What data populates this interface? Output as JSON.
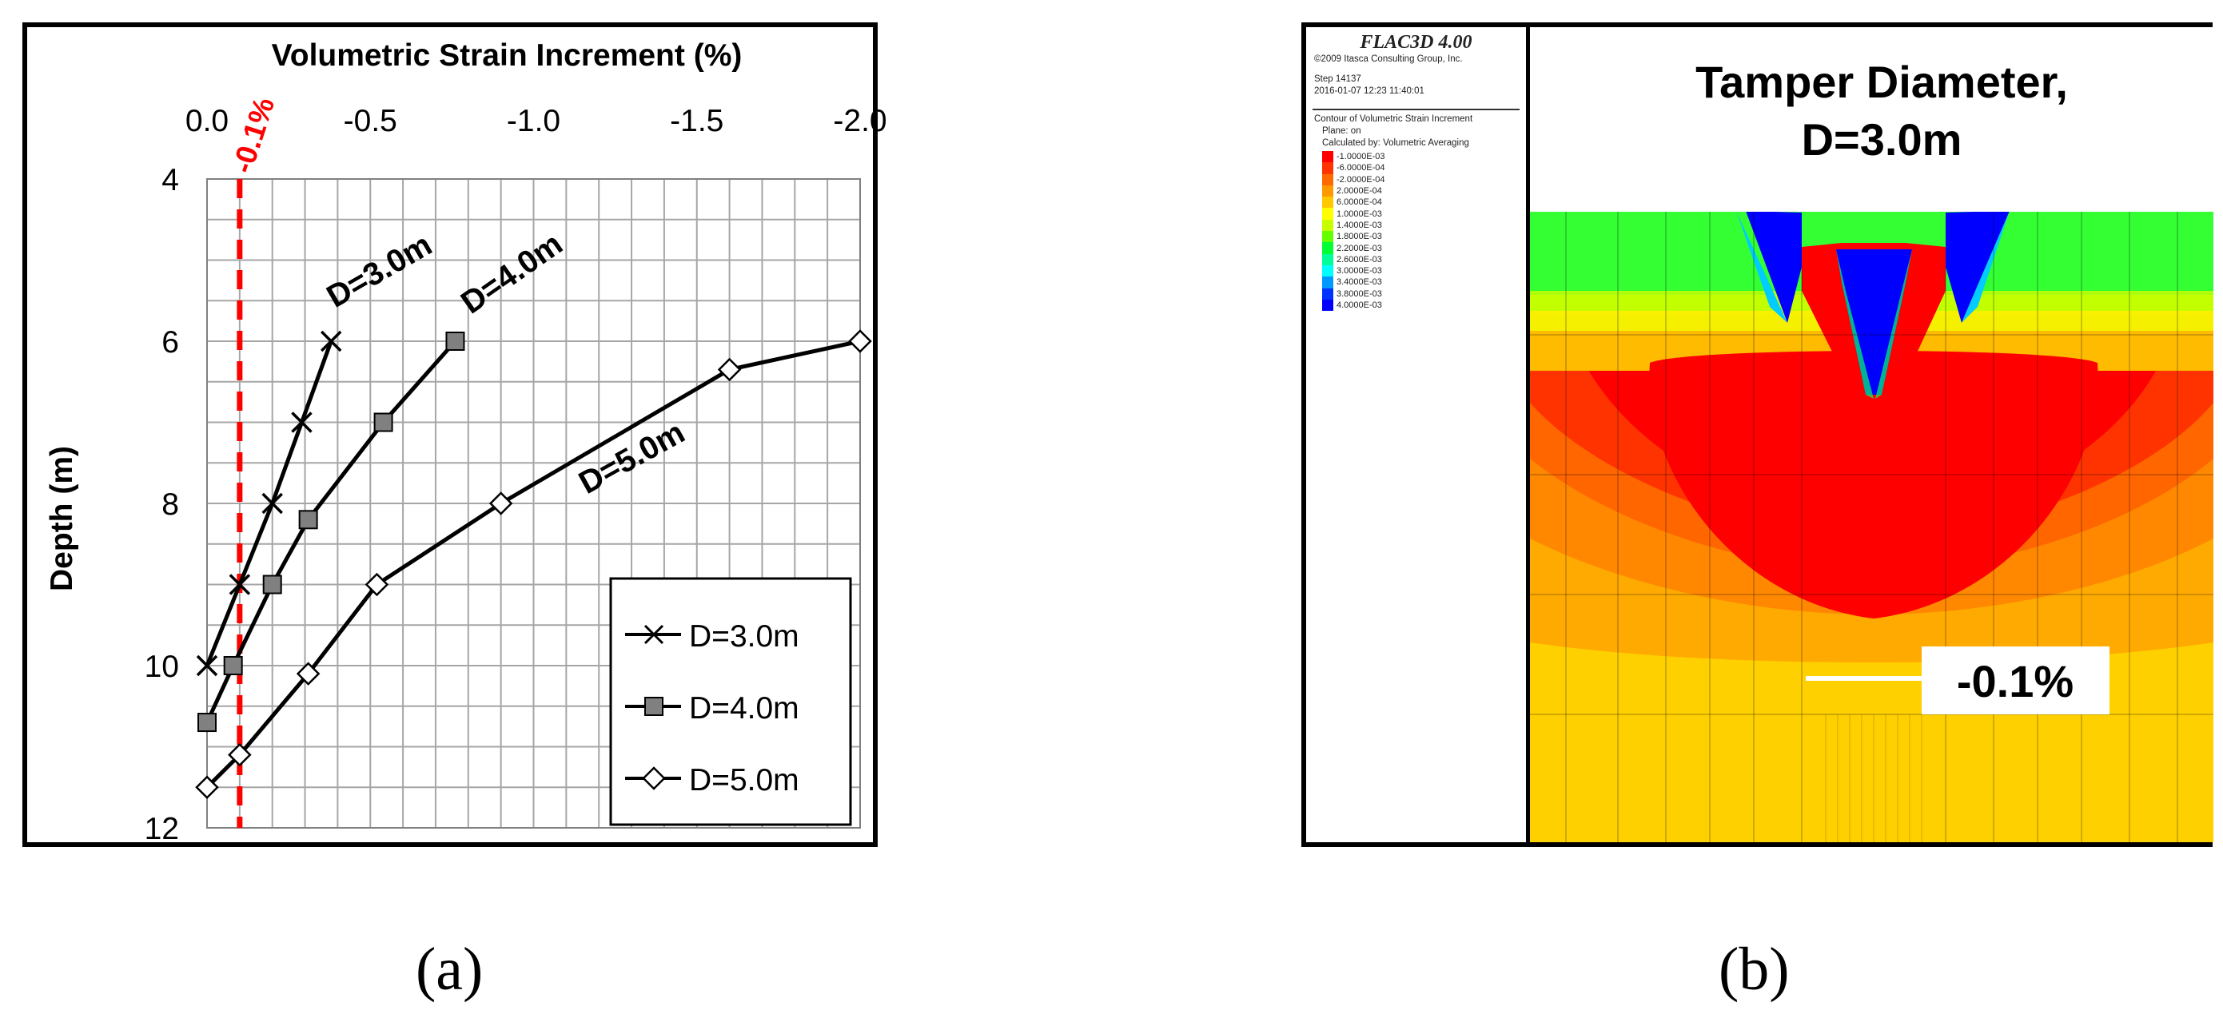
{
  "captions": {
    "a": "(a)",
    "b": "(b)"
  },
  "chart_data": {
    "type": "line",
    "xlabel": "Volumetric Strain Increment (%)",
    "ylabel": "Depth (m)",
    "xlim": [
      0.0,
      -2.0
    ],
    "ylim": [
      4,
      12
    ],
    "x_ticks": [
      "0.0",
      "-0.5",
      "-1.0",
      "-1.5",
      "-2.0"
    ],
    "y_ticks": [
      "4",
      "6",
      "8",
      "10",
      "12"
    ],
    "grid": true,
    "legend_position": "bottom-right",
    "threshold": {
      "value": -0.1,
      "label": "-0.1%",
      "color": "#ff0000"
    },
    "series": [
      {
        "name": "D=3.0m",
        "marker": "x",
        "label": "D=3.0m",
        "points": [
          [
            -0.38,
            6.0
          ],
          [
            -0.29,
            7.0
          ],
          [
            -0.2,
            8.0
          ],
          [
            -0.1,
            9.0
          ],
          [
            0.0,
            10.0
          ]
        ]
      },
      {
        "name": "D=4.0m",
        "marker": "square",
        "label": "D=4.0m",
        "points": [
          [
            -0.76,
            6.0
          ],
          [
            -0.54,
            7.0
          ],
          [
            -0.31,
            8.2
          ],
          [
            -0.2,
            9.0
          ],
          [
            -0.08,
            10.0
          ],
          [
            0.0,
            10.7
          ]
        ]
      },
      {
        "name": "D=5.0m",
        "marker": "diamond",
        "label": "D=5.0m",
        "points": [
          [
            -2.0,
            6.0
          ],
          [
            -1.6,
            6.35
          ],
          [
            -0.9,
            8.0
          ],
          [
            -0.52,
            9.0
          ],
          [
            -0.31,
            10.1
          ],
          [
            -0.1,
            11.1
          ],
          [
            0.0,
            11.5
          ]
        ]
      }
    ]
  },
  "contour": {
    "header": {
      "software": "FLAC3D 4.00",
      "copyright": "©2009 Itasca Consulting Group, Inc.",
      "step": "Step 14137",
      "datetime": "2016-01-07 12:23 11:40:01",
      "plot_title": "Contour of Volumetric Strain Increment",
      "plane": "Plane: on",
      "calculated": "Calculated by: Volumetric Averaging"
    },
    "scale": [
      {
        "label": "-1.0000E-03",
        "color": "#ff0000"
      },
      {
        "label": "-6.0000E-04",
        "color": "#ff3300"
      },
      {
        "label": "-2.0000E-04",
        "color": "#ff6a00"
      },
      {
        "label": "2.0000E-04",
        "color": "#ff9900"
      },
      {
        "label": "6.0000E-04",
        "color": "#ffc800"
      },
      {
        "label": "1.0000E-03",
        "color": "#ffff00"
      },
      {
        "label": "1.4000E-03",
        "color": "#c8ff00"
      },
      {
        "label": "1.8000E-03",
        "color": "#66ff00"
      },
      {
        "label": "2.2000E-03",
        "color": "#00ff33"
      },
      {
        "label": "2.6000E-03",
        "color": "#00ff99"
      },
      {
        "label": "3.0000E-03",
        "color": "#00ffff"
      },
      {
        "label": "3.4000E-03",
        "color": "#0099ff"
      },
      {
        "label": "3.8000E-03",
        "color": "#0033ff"
      },
      {
        "label": "4.0000E-03",
        "color": "#0000ff"
      }
    ],
    "title_line1": "Tamper Diameter,",
    "title_line2": "D=3.0m",
    "callout": "-0.1%"
  }
}
